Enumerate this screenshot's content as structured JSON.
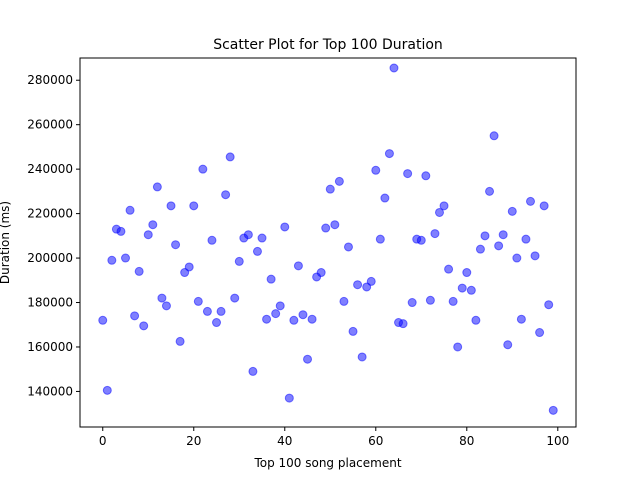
{
  "chart_data": {
    "type": "scatter",
    "title": "Scatter Plot for Top 100 Duration",
    "xlabel": "Top 100 song placement",
    "ylabel": "Duration (ms)",
    "xlim": [
      -5,
      104
    ],
    "ylim": [
      124000,
      290000
    ],
    "xticks": [
      0,
      20,
      40,
      60,
      80,
      100
    ],
    "yticks": [
      140000,
      160000,
      180000,
      200000,
      220000,
      240000,
      260000,
      280000
    ],
    "grid": false,
    "marker_color": "#0000ff",
    "marker_alpha": 0.5,
    "x": [
      0,
      1,
      2,
      3,
      4,
      5,
      6,
      7,
      8,
      9,
      10,
      11,
      12,
      13,
      14,
      15,
      16,
      17,
      18,
      19,
      20,
      21,
      22,
      23,
      24,
      25,
      26,
      27,
      28,
      29,
      30,
      31,
      32,
      33,
      34,
      35,
      36,
      37,
      38,
      39,
      40,
      41,
      42,
      43,
      44,
      45,
      46,
      47,
      48,
      49,
      50,
      51,
      52,
      53,
      54,
      55,
      56,
      57,
      58,
      59,
      60,
      61,
      62,
      63,
      64,
      65,
      66,
      67,
      68,
      69,
      70,
      71,
      72,
      73,
      74,
      75,
      76,
      77,
      78,
      79,
      80,
      81,
      82,
      83,
      84,
      85,
      86,
      87,
      88,
      89,
      90,
      91,
      92,
      93,
      94,
      95,
      96,
      97,
      98,
      99
    ],
    "y": [
      172000,
      140500,
      199000,
      213000,
      212000,
      200000,
      221500,
      174000,
      194000,
      169500,
      210500,
      215000,
      232000,
      182000,
      178500,
      223500,
      206000,
      162500,
      193500,
      196000,
      223500,
      180500,
      240000,
      176000,
      208000,
      171000,
      176000,
      228500,
      245500,
      182000,
      198500,
      209000,
      210500,
      149000,
      203000,
      209000,
      172500,
      190500,
      175000,
      178500,
      214000,
      137000,
      172000,
      196500,
      174500,
      154500,
      172500,
      191500,
      193500,
      213500,
      231000,
      215000,
      234500,
      180500,
      205000,
      167000,
      188000,
      155500,
      187000,
      189500,
      239500,
      208500,
      227000,
      247000,
      285500,
      171000,
      170500,
      238000,
      180000,
      208500,
      208000,
      237000,
      181000,
      211000,
      220500,
      223500,
      195000,
      180500,
      160000,
      186500,
      193500,
      185500,
      172000,
      204000,
      210000,
      230000,
      255000,
      205500,
      210500,
      161000,
      221000,
      200000,
      172500,
      208500,
      225500,
      201000,
      166500,
      223500,
      179000,
      131500
    ]
  }
}
